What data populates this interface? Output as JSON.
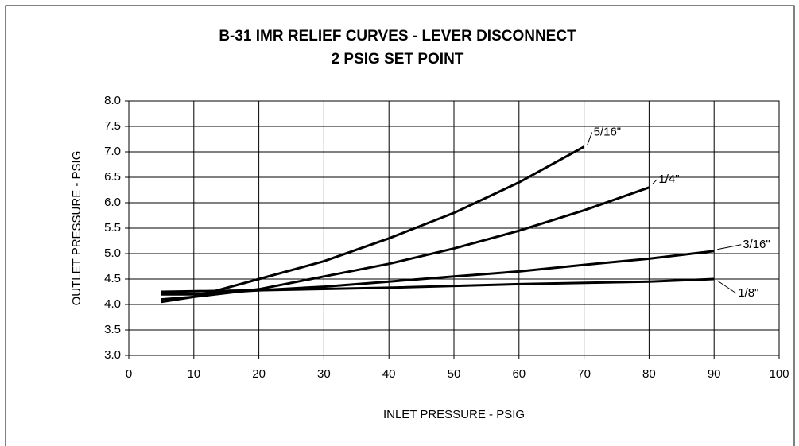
{
  "chart_data": {
    "type": "line",
    "title": "B-31 IMR RELIEF CURVES - LEVER DISCONNECT",
    "subtitle": "2 PSIG SET POINT",
    "x_label": "INLET PRESSURE - PSIG",
    "y_label": "OUTLET PRESSURE - PSIG",
    "xlim": [
      0,
      100
    ],
    "xticks": [
      0,
      10,
      20,
      30,
      40,
      50,
      60,
      70,
      80,
      90,
      100
    ],
    "ylim": [
      3.0,
      8.0
    ],
    "yticks": [
      {
        "value": 3,
        "label": "3.0"
      },
      3.5,
      {
        "value": 4,
        "label": "4.0"
      },
      4.5,
      {
        "value": 5,
        "label": "5.0"
      },
      5.5,
      {
        "value": 6,
        "label": "6.0"
      },
      6.5,
      {
        "value": 7,
        "label": "7.0"
      },
      7.5,
      {
        "value": 8,
        "label": "8.0"
      }
    ],
    "grid": true,
    "series": [
      {
        "name": "5/16\"",
        "color": "#000000",
        "x": [
          5,
          10,
          20,
          30,
          40,
          50,
          60,
          70
        ],
        "values": [
          4.05,
          4.15,
          4.5,
          4.85,
          5.3,
          5.8,
          6.4,
          7.1
        ]
      },
      {
        "name": "1/4\"",
        "color": "#000000",
        "x": [
          5,
          10,
          20,
          30,
          40,
          50,
          60,
          70,
          80
        ],
        "values": [
          4.1,
          4.15,
          4.3,
          4.55,
          4.8,
          5.1,
          5.45,
          5.85,
          6.3
        ]
      },
      {
        "name": "3/16\"",
        "color": "#000000",
        "x": [
          5,
          10,
          20,
          30,
          40,
          50,
          60,
          70,
          80,
          90
        ],
        "values": [
          4.2,
          4.2,
          4.28,
          4.35,
          4.45,
          4.55,
          4.65,
          4.78,
          4.9,
          5.05
        ]
      },
      {
        "name": "1/8\"",
        "color": "#000000",
        "x": [
          5,
          20,
          40,
          60,
          80,
          90
        ],
        "values": [
          4.25,
          4.28,
          4.33,
          4.4,
          4.45,
          4.5
        ]
      }
    ]
  }
}
